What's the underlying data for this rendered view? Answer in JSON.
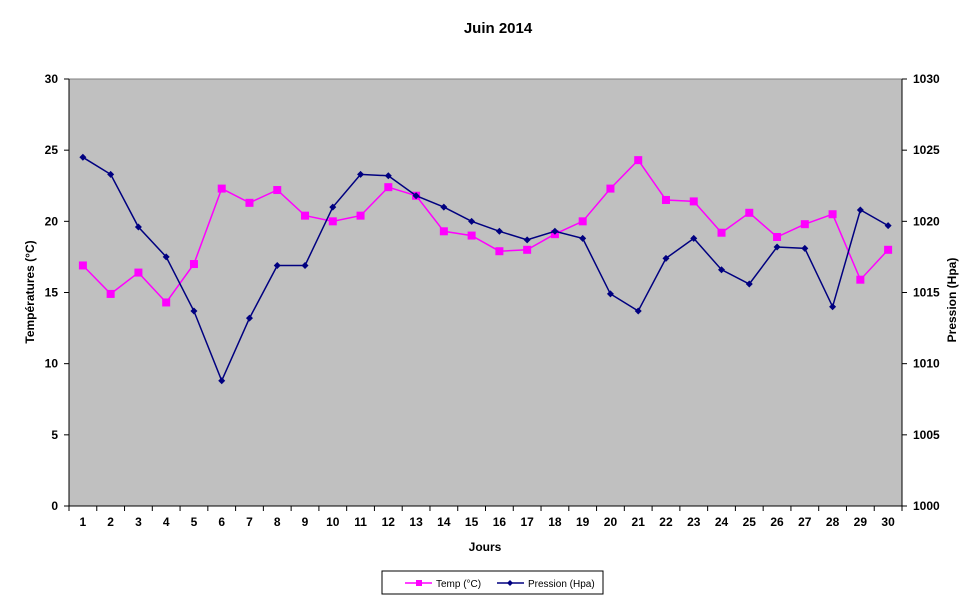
{
  "chart_data": {
    "type": "line",
    "title": "Juin 2014",
    "xlabel": "Jours",
    "ylabel_left": "Températures  (°C)",
    "ylabel_right": "Pression (Hpa)",
    "ylim_left": [
      0,
      30
    ],
    "yticks_left": [
      0,
      5,
      10,
      15,
      20,
      25,
      30
    ],
    "ylim_right": [
      1000,
      1030
    ],
    "yticks_right": [
      1000,
      1005,
      1010,
      1015,
      1020,
      1025,
      1030
    ],
    "categories": [
      "1",
      "2",
      "3",
      "4",
      "5",
      "6",
      "7",
      "8",
      "9",
      "10",
      "11",
      "12",
      "13",
      "14",
      "15",
      "16",
      "17",
      "18",
      "19",
      "20",
      "21",
      "22",
      "23",
      "24",
      "25",
      "26",
      "27",
      "28",
      "29",
      "30"
    ],
    "grid": false,
    "legend_position": "bottom",
    "series": [
      {
        "name": "Temp (°C)",
        "axis": "left",
        "color": "#ff00ff",
        "marker": "square",
        "values": [
          16.9,
          14.9,
          16.4,
          14.3,
          17.0,
          22.3,
          21.3,
          22.2,
          20.4,
          20.0,
          20.4,
          22.4,
          21.8,
          19.3,
          19.0,
          17.9,
          18.0,
          19.1,
          20.0,
          22.3,
          24.3,
          21.5,
          21.4,
          19.2,
          20.6,
          18.9,
          19.8,
          20.5,
          15.9,
          18.0
        ]
      },
      {
        "name": "Pression (Hpa)",
        "axis": "right",
        "color": "#000080",
        "marker": "diamond",
        "values": [
          1024.5,
          1023.3,
          1019.6,
          1017.5,
          1013.7,
          1008.8,
          1013.2,
          1016.9,
          1016.9,
          1021.0,
          1023.3,
          1023.2,
          1021.8,
          1021.0,
          1020.0,
          1019.3,
          1018.7,
          1019.3,
          1018.8,
          1014.9,
          1013.7,
          1017.4,
          1018.8,
          1016.6,
          1015.6,
          1018.2,
          1018.1,
          1014.0,
          1020.8,
          1019.7
        ]
      }
    ]
  },
  "colors": {
    "plot_background": "#c0c0c0",
    "axis_line": "#000000",
    "temp_series": "#ff00ff",
    "pressure_series": "#000080"
  }
}
